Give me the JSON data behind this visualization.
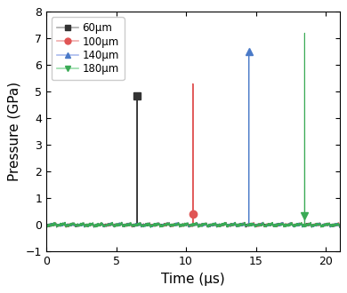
{
  "title": "",
  "xlabel": "Time (μs)",
  "ylabel": "Pressure (GPa)",
  "xlim": [
    0,
    21
  ],
  "ylim": [
    -1,
    8
  ],
  "yticks": [
    -1,
    0,
    1,
    2,
    3,
    4,
    5,
    6,
    7,
    8
  ],
  "xticks": [
    0,
    5,
    10,
    15,
    20
  ],
  "series": [
    {
      "label": "60μm",
      "color": "#333333",
      "legend_line_color": "#aaaaaa",
      "spike_time": 6.5,
      "spike_peak": 4.9,
      "marker": "s",
      "marker_y": 4.85,
      "noise_amp": 0.07,
      "noise_freq": 15
    },
    {
      "label": "100μm",
      "color": "#e05555",
      "legend_line_color": "#f0aaaa",
      "spike_time": 10.5,
      "spike_peak": 5.3,
      "marker": "o",
      "marker_y": 0.42,
      "noise_amp": 0.07,
      "noise_freq": 15
    },
    {
      "label": "140μm",
      "color": "#4a7ac8",
      "legend_line_color": "#aabbee",
      "spike_time": 14.5,
      "spike_peak": 6.5,
      "marker": "^",
      "marker_y": 6.5,
      "noise_amp": 0.07,
      "noise_freq": 15
    },
    {
      "label": "180μm",
      "color": "#3aaa55",
      "legend_line_color": "#99ddaa",
      "spike_time": 18.5,
      "spike_peak": 7.2,
      "marker": "v",
      "marker_y": 0.35,
      "noise_amp": 0.08,
      "noise_freq": 15
    }
  ],
  "legend_loc": "upper left",
  "figsize": [
    3.9,
    3.3
  ],
  "dpi": 100
}
